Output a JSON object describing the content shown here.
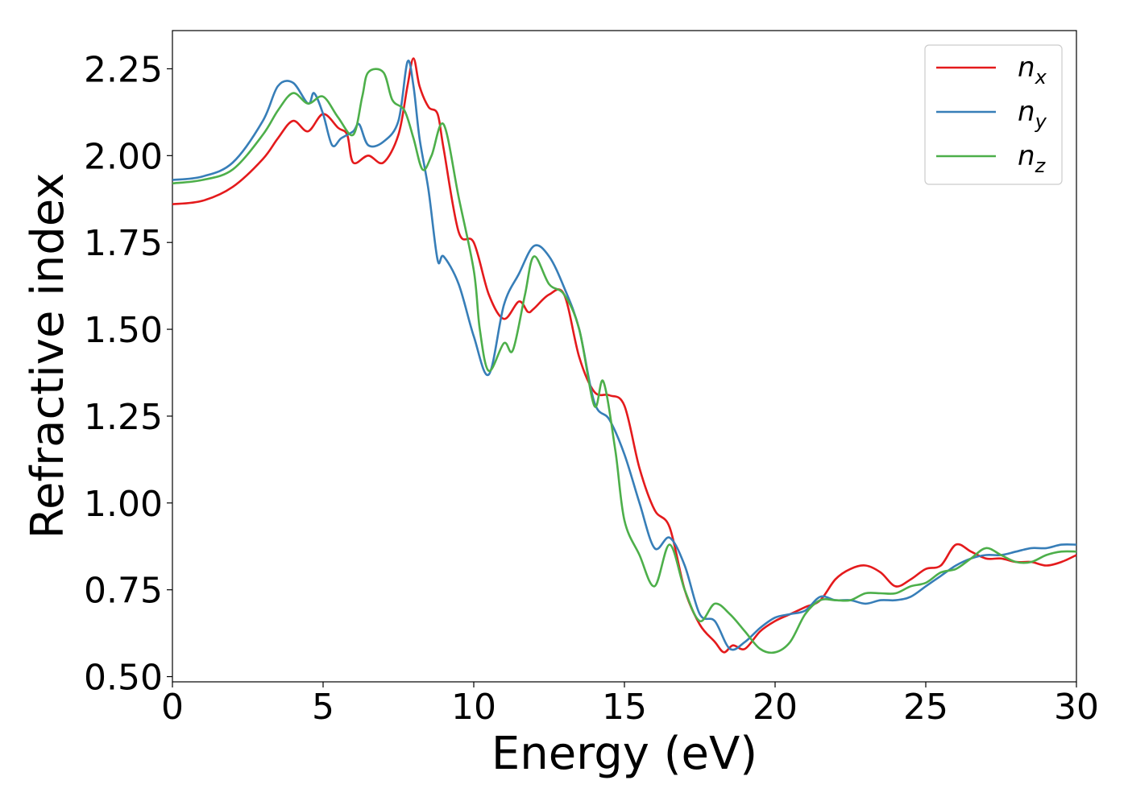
{
  "chart_data": {
    "type": "line",
    "xlabel": "Energy (eV)",
    "ylabel": "Refractive index",
    "xlim": [
      0,
      30
    ],
    "ylim": [
      0.485,
      2.36
    ],
    "xticks": [
      0,
      5,
      10,
      15,
      20,
      25,
      30
    ],
    "xtick_labels": [
      "0",
      "5",
      "10",
      "15",
      "20",
      "25",
      "30"
    ],
    "yticks": [
      0.5,
      0.75,
      1.0,
      1.25,
      1.5,
      1.75,
      2.0,
      2.25
    ],
    "ytick_labels": [
      "0.50",
      "0.75",
      "1.00",
      "1.25",
      "1.50",
      "1.75",
      "2.00",
      "2.25"
    ],
    "grid": false,
    "legend_position": "top-right",
    "series": [
      {
        "name": "n",
        "subscript": "x",
        "color": "#e41a1c",
        "points": [
          [
            0,
            1.86
          ],
          [
            1,
            1.87
          ],
          [
            2,
            1.91
          ],
          [
            3,
            1.99
          ],
          [
            3.5,
            2.05
          ],
          [
            4,
            2.1
          ],
          [
            4.5,
            2.07
          ],
          [
            5,
            2.12
          ],
          [
            5.5,
            2.08
          ],
          [
            5.8,
            2.06
          ],
          [
            6,
            1.98
          ],
          [
            6.5,
            2.0
          ],
          [
            7,
            1.98
          ],
          [
            7.5,
            2.06
          ],
          [
            7.8,
            2.2
          ],
          [
            8,
            2.28
          ],
          [
            8.2,
            2.2
          ],
          [
            8.5,
            2.14
          ],
          [
            8.8,
            2.12
          ],
          [
            9,
            2.02
          ],
          [
            9.5,
            1.78
          ],
          [
            10,
            1.75
          ],
          [
            10.5,
            1.6
          ],
          [
            11,
            1.53
          ],
          [
            11.5,
            1.58
          ],
          [
            11.8,
            1.55
          ],
          [
            12,
            1.56
          ],
          [
            12.5,
            1.6
          ],
          [
            13,
            1.6
          ],
          [
            13.5,
            1.42
          ],
          [
            14,
            1.32
          ],
          [
            14.5,
            1.31
          ],
          [
            15,
            1.28
          ],
          [
            15.5,
            1.1
          ],
          [
            16,
            0.98
          ],
          [
            16.5,
            0.93
          ],
          [
            17,
            0.75
          ],
          [
            17.5,
            0.65
          ],
          [
            18,
            0.6
          ],
          [
            18.3,
            0.57
          ],
          [
            18.6,
            0.59
          ],
          [
            19,
            0.58
          ],
          [
            19.5,
            0.63
          ],
          [
            20,
            0.66
          ],
          [
            20.5,
            0.68
          ],
          [
            21,
            0.7
          ],
          [
            21.5,
            0.72
          ],
          [
            22,
            0.78
          ],
          [
            22.5,
            0.81
          ],
          [
            23,
            0.82
          ],
          [
            23.5,
            0.8
          ],
          [
            24,
            0.76
          ],
          [
            24.5,
            0.78
          ],
          [
            25,
            0.81
          ],
          [
            25.5,
            0.82
          ],
          [
            26,
            0.88
          ],
          [
            26.5,
            0.86
          ],
          [
            27,
            0.84
          ],
          [
            27.5,
            0.84
          ],
          [
            28,
            0.83
          ],
          [
            28.5,
            0.83
          ],
          [
            29,
            0.82
          ],
          [
            29.5,
            0.83
          ],
          [
            30,
            0.85
          ]
        ]
      },
      {
        "name": "n",
        "subscript": "y",
        "color": "#377eb8",
        "points": [
          [
            0,
            1.93
          ],
          [
            1,
            1.94
          ],
          [
            2,
            1.98
          ],
          [
            3,
            2.1
          ],
          [
            3.5,
            2.2
          ],
          [
            4,
            2.21
          ],
          [
            4.5,
            2.15
          ],
          [
            4.7,
            2.18
          ],
          [
            5,
            2.12
          ],
          [
            5.3,
            2.03
          ],
          [
            5.6,
            2.05
          ],
          [
            6,
            2.07
          ],
          [
            6.2,
            2.09
          ],
          [
            6.5,
            2.03
          ],
          [
            7,
            2.04
          ],
          [
            7.5,
            2.1
          ],
          [
            7.8,
            2.27
          ],
          [
            8,
            2.2
          ],
          [
            8.2,
            2.05
          ],
          [
            8.5,
            1.9
          ],
          [
            8.8,
            1.7
          ],
          [
            9,
            1.71
          ],
          [
            9.5,
            1.63
          ],
          [
            10,
            1.48
          ],
          [
            10.5,
            1.37
          ],
          [
            11,
            1.57
          ],
          [
            11.5,
            1.66
          ],
          [
            12,
            1.74
          ],
          [
            12.5,
            1.71
          ],
          [
            13,
            1.62
          ],
          [
            13.5,
            1.5
          ],
          [
            14,
            1.29
          ],
          [
            14.5,
            1.24
          ],
          [
            15,
            1.14
          ],
          [
            15.5,
            1.0
          ],
          [
            16,
            0.87
          ],
          [
            16.5,
            0.9
          ],
          [
            17,
            0.82
          ],
          [
            17.5,
            0.68
          ],
          [
            18,
            0.66
          ],
          [
            18.5,
            0.58
          ],
          [
            19,
            0.6
          ],
          [
            19.5,
            0.64
          ],
          [
            20,
            0.67
          ],
          [
            20.5,
            0.68
          ],
          [
            21,
            0.69
          ],
          [
            21.5,
            0.73
          ],
          [
            22,
            0.72
          ],
          [
            22.5,
            0.72
          ],
          [
            23,
            0.71
          ],
          [
            23.5,
            0.72
          ],
          [
            24,
            0.72
          ],
          [
            24.5,
            0.73
          ],
          [
            25,
            0.76
          ],
          [
            25.5,
            0.79
          ],
          [
            26,
            0.82
          ],
          [
            26.5,
            0.84
          ],
          [
            27,
            0.85
          ],
          [
            27.5,
            0.85
          ],
          [
            28,
            0.86
          ],
          [
            28.5,
            0.87
          ],
          [
            29,
            0.87
          ],
          [
            29.5,
            0.88
          ],
          [
            30,
            0.88
          ]
        ]
      },
      {
        "name": "n",
        "subscript": "z",
        "color": "#4daf4a",
        "points": [
          [
            0,
            1.92
          ],
          [
            1,
            1.93
          ],
          [
            2,
            1.96
          ],
          [
            3,
            2.06
          ],
          [
            3.5,
            2.13
          ],
          [
            4,
            2.18
          ],
          [
            4.5,
            2.15
          ],
          [
            5,
            2.17
          ],
          [
            5.5,
            2.11
          ],
          [
            6,
            2.06
          ],
          [
            6.3,
            2.17
          ],
          [
            6.5,
            2.24
          ],
          [
            7,
            2.24
          ],
          [
            7.3,
            2.16
          ],
          [
            7.7,
            2.13
          ],
          [
            8,
            2.05
          ],
          [
            8.3,
            1.96
          ],
          [
            8.6,
            2.0
          ],
          [
            9,
            2.09
          ],
          [
            9.5,
            1.88
          ],
          [
            10,
            1.67
          ],
          [
            10.2,
            1.5
          ],
          [
            10.5,
            1.38
          ],
          [
            11,
            1.46
          ],
          [
            11.3,
            1.44
          ],
          [
            11.7,
            1.6
          ],
          [
            12,
            1.71
          ],
          [
            12.5,
            1.63
          ],
          [
            13,
            1.6
          ],
          [
            13.5,
            1.5
          ],
          [
            14,
            1.28
          ],
          [
            14.3,
            1.35
          ],
          [
            14.7,
            1.15
          ],
          [
            15,
            0.95
          ],
          [
            15.5,
            0.85
          ],
          [
            16,
            0.76
          ],
          [
            16.5,
            0.88
          ],
          [
            17,
            0.75
          ],
          [
            17.5,
            0.66
          ],
          [
            18,
            0.71
          ],
          [
            18.5,
            0.68
          ],
          [
            19,
            0.63
          ],
          [
            19.5,
            0.58
          ],
          [
            20,
            0.57
          ],
          [
            20.5,
            0.6
          ],
          [
            21,
            0.68
          ],
          [
            21.5,
            0.72
          ],
          [
            22,
            0.72
          ],
          [
            22.5,
            0.72
          ],
          [
            23,
            0.74
          ],
          [
            23.5,
            0.74
          ],
          [
            24,
            0.74
          ],
          [
            24.5,
            0.76
          ],
          [
            25,
            0.77
          ],
          [
            25.5,
            0.8
          ],
          [
            26,
            0.81
          ],
          [
            26.5,
            0.84
          ],
          [
            27,
            0.87
          ],
          [
            27.5,
            0.85
          ],
          [
            28,
            0.83
          ],
          [
            28.5,
            0.83
          ],
          [
            29,
            0.85
          ],
          [
            29.5,
            0.86
          ],
          [
            30,
            0.86
          ]
        ]
      }
    ]
  }
}
